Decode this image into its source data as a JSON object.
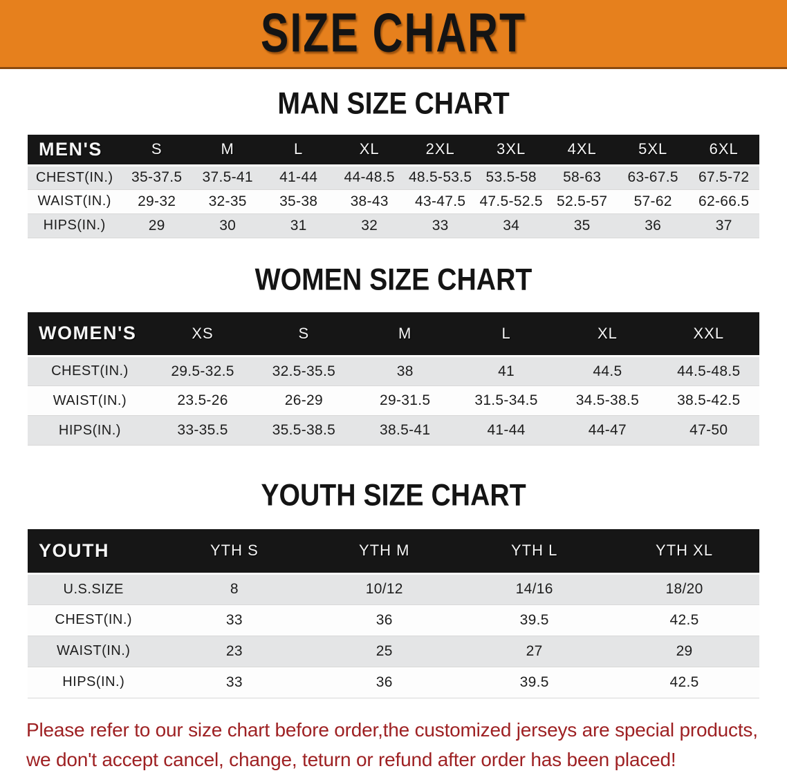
{
  "banner": {
    "title": "SIZE CHART",
    "bg_color": "#E6801D"
  },
  "sections": [
    {
      "id": "men",
      "heading": "MAN SIZE CHART",
      "header_label": "MEN'S",
      "columns": [
        "S",
        "M",
        "L",
        "XL",
        "2XL",
        "3XL",
        "4XL",
        "5XL",
        "6XL"
      ],
      "rows": [
        {
          "label": "CHEST(IN.)",
          "values": [
            "35-37.5",
            "37.5-41",
            "41-44",
            "44-48.5",
            "48.5-53.5",
            "53.5-58",
            "58-63",
            "63-67.5",
            "67.5-72"
          ]
        },
        {
          "label": "WAIST(IN.)",
          "values": [
            "29-32",
            "32-35",
            "35-38",
            "38-43",
            "43-47.5",
            "47.5-52.5",
            "52.5-57",
            "57-62",
            "62-66.5"
          ]
        },
        {
          "label": "HIPS(IN.)",
          "values": [
            "29",
            "30",
            "31",
            "32",
            "33",
            "34",
            "35",
            "36",
            "37"
          ]
        }
      ]
    },
    {
      "id": "women",
      "heading": "WOMEN SIZE CHART",
      "header_label": "WOMEN'S",
      "columns": [
        "XS",
        "S",
        "M",
        "L",
        "XL",
        "XXL"
      ],
      "rows": [
        {
          "label": "CHEST(IN.)",
          "values": [
            "29.5-32.5",
            "32.5-35.5",
            "38",
            "41",
            "44.5",
            "44.5-48.5"
          ]
        },
        {
          "label": "WAIST(IN.)",
          "values": [
            "23.5-26",
            "26-29",
            "29-31.5",
            "31.5-34.5",
            "34.5-38.5",
            "38.5-42.5"
          ]
        },
        {
          "label": "HIPS(IN.)",
          "values": [
            "33-35.5",
            "35.5-38.5",
            "38.5-41",
            "41-44",
            "44-47",
            "47-50"
          ]
        }
      ]
    },
    {
      "id": "youth",
      "heading": "YOUTH SIZE CHART",
      "header_label": "YOUTH",
      "columns": [
        "YTH S",
        "YTH M",
        "YTH L",
        "YTH XL"
      ],
      "rows": [
        {
          "label": "U.S.SIZE",
          "values": [
            "8",
            "10/12",
            "14/16",
            "18/20"
          ]
        },
        {
          "label": "CHEST(IN.)",
          "values": [
            "33",
            "36",
            "39.5",
            "42.5"
          ]
        },
        {
          "label": "WAIST(IN.)",
          "values": [
            "23",
            "25",
            "27",
            "29"
          ]
        },
        {
          "label": "HIPS(IN.)",
          "values": [
            "33",
            "36",
            "39.5",
            "42.5"
          ]
        }
      ]
    }
  ],
  "disclaimer": {
    "color": "#9E2123",
    "lines": [
      "Please refer to our size chart before order,the customized jerseys are special products,",
      "we don't accept cancel, change, teturn or refund after order has been placed!"
    ]
  }
}
